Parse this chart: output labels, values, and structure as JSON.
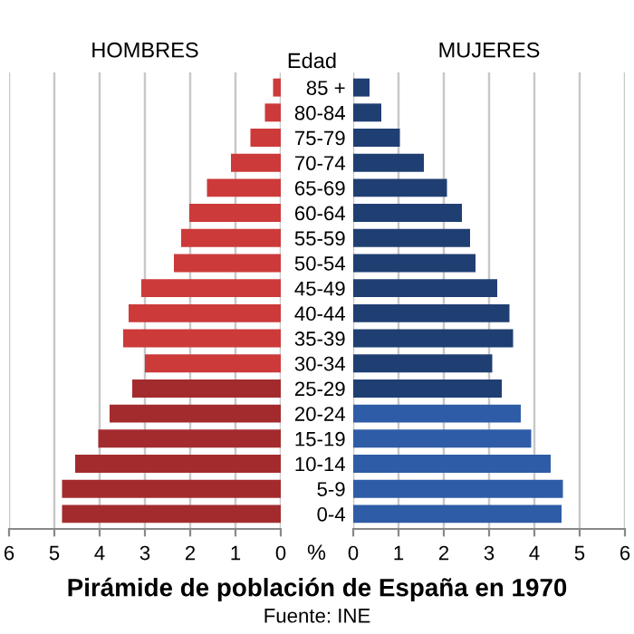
{
  "chart_data": [
    {
      "type": "bar",
      "orientation": "horizontal",
      "title": "HOMBRES",
      "categories": [
        null,
        null,
        null,
        null,
        null,
        null,
        null,
        null,
        null,
        null,
        null,
        null,
        null,
        null,
        null,
        null,
        null,
        null
      ],
      "series": [
        {
          "values": [
            0.17,
            0.35,
            0.67,
            1.1,
            1.63,
            2.02,
            2.2,
            2.36,
            3.08,
            3.36,
            3.48,
            3.0,
            3.28,
            3.78,
            4.03,
            4.54,
            4.83,
            4.83
          ],
          "colors": [
            "#cc3a3a",
            "#cc3a3a",
            "#cc3a3a",
            "#cc3a3a",
            "#cc3a3a",
            "#cc3a3a",
            "#cc3a3a",
            "#cc3a3a",
            "#cc3a3a",
            "#cc3a3a",
            "#cc3a3a",
            "#cc3a3a",
            "#a32b2e",
            "#a32b2e",
            "#a32b2e",
            "#a32b2e",
            "#a32b2e",
            "#a32b2e"
          ]
        }
      ],
      "xlim": [
        6,
        0
      ],
      "xticks": [
        6,
        5,
        4,
        3,
        2,
        1,
        0
      ],
      "grid": "x",
      "tick_labels": "x",
      "annotations": [
        "Pirámide de población de España en 1970",
        "Fuente: INE"
      ]
    },
    {
      "type": "bar",
      "orientation": "horizontal",
      "title": "MUJERES",
      "ylabel": "Edad",
      "xlabel": "%",
      "categories": [
        "85 +",
        "80-84",
        "75-79",
        "70-74",
        "65-69",
        "60-64",
        "55-59",
        "50-54",
        "45-49",
        "40-44",
        "35-39",
        "30-34",
        "25-29",
        "20-24",
        "15-19",
        "10-14",
        "5-9",
        "0-4"
      ],
      "series": [
        {
          "values": [
            0.36,
            0.62,
            1.03,
            1.56,
            2.07,
            2.4,
            2.58,
            2.7,
            3.18,
            3.45,
            3.53,
            3.07,
            3.28,
            3.7,
            3.93,
            4.36,
            4.63,
            4.6
          ],
          "colors": [
            "#1f3f73",
            "#1f3f73",
            "#1f3f73",
            "#1f3f73",
            "#1f3f73",
            "#1f3f73",
            "#1f3f73",
            "#1f3f73",
            "#1f3f73",
            "#1f3f73",
            "#1f3f73",
            "#1f3f73",
            "#1f3f73",
            "#2e5ca6",
            "#2e5ca6",
            "#2e5ca6",
            "#2e5ca6",
            "#2e5ca6"
          ]
        }
      ],
      "xlim": [
        0,
        6
      ],
      "xticks": [
        0,
        1,
        2,
        3,
        4,
        5,
        6
      ],
      "grid": "x"
    }
  ]
}
